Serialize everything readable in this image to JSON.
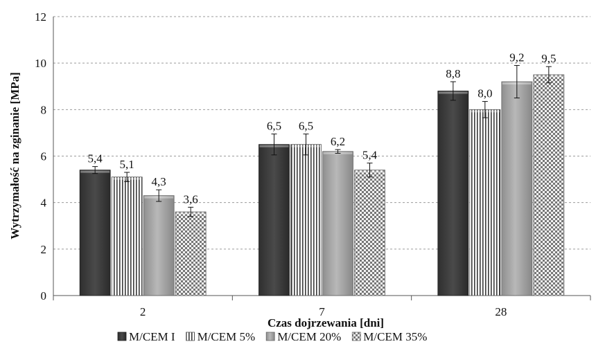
{
  "chart_data": {
    "type": "bar",
    "xlabel": "Czas dojrzewania [dni]",
    "ylabel": "Wytrzymałość na zginanie [MPa]",
    "ylim": [
      0,
      12
    ],
    "yticks": [
      "0",
      "2",
      "4",
      "6",
      "8",
      "10",
      "12"
    ],
    "categories": [
      "2",
      "7",
      "28"
    ],
    "series": [
      {
        "name": "M/CEM I",
        "values": [
          5.4,
          6.5,
          8.8
        ],
        "labels": [
          "5,4",
          "6,5",
          "8,8"
        ],
        "errors": [
          0.15,
          0.45,
          0.4
        ],
        "pattern": "solid"
      },
      {
        "name": "M/CEM 5%",
        "values": [
          5.1,
          6.5,
          8.0
        ],
        "labels": [
          "5,1",
          "6,5",
          "8,0"
        ],
        "errors": [
          0.2,
          0.45,
          0.35
        ],
        "pattern": "vlines"
      },
      {
        "name": "M/CEM 20%",
        "values": [
          4.3,
          6.2,
          9.2
        ],
        "labels": [
          "4,3",
          "6,2",
          "9,2"
        ],
        "errors": [
          0.25,
          0.08,
          0.7
        ],
        "pattern": "gradient"
      },
      {
        "name": "M/CEM 35%",
        "values": [
          3.6,
          5.4,
          9.5
        ],
        "labels": [
          "3,6",
          "5,4",
          "9,5"
        ],
        "errors": [
          0.2,
          0.3,
          0.35
        ],
        "pattern": "checker"
      }
    ],
    "grid": true,
    "legend_position": "bottom"
  }
}
